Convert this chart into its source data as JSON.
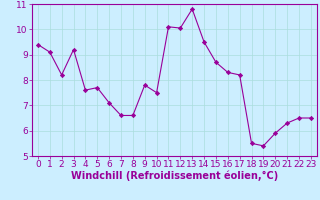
{
  "x": [
    0,
    1,
    2,
    3,
    4,
    5,
    6,
    7,
    8,
    9,
    10,
    11,
    12,
    13,
    14,
    15,
    16,
    17,
    18,
    19,
    20,
    21,
    22,
    23
  ],
  "y": [
    9.4,
    9.1,
    8.2,
    9.2,
    7.6,
    7.7,
    7.1,
    6.6,
    6.6,
    7.8,
    7.5,
    10.1,
    10.05,
    10.8,
    9.5,
    8.7,
    8.3,
    8.2,
    5.5,
    5.4,
    5.9,
    6.3,
    6.5,
    6.5
  ],
  "line_color": "#990099",
  "marker": "D",
  "marker_size": 2.2,
  "bg_color": "#cceeff",
  "grid_color": "#aadddd",
  "xlabel": "Windchill (Refroidissement éolien,°C)",
  "xlabel_color": "#990099",
  "xlim": [
    -0.5,
    23.5
  ],
  "ylim": [
    5,
    11
  ],
  "yticks": [
    5,
    6,
    7,
    8,
    9,
    10,
    11
  ],
  "xticks": [
    0,
    1,
    2,
    3,
    4,
    5,
    6,
    7,
    8,
    9,
    10,
    11,
    12,
    13,
    14,
    15,
    16,
    17,
    18,
    19,
    20,
    21,
    22,
    23
  ],
  "tick_labelsize": 6.5,
  "xlabel_fontsize": 7.0,
  "spine_color": "#990099",
  "tick_color": "#990099"
}
